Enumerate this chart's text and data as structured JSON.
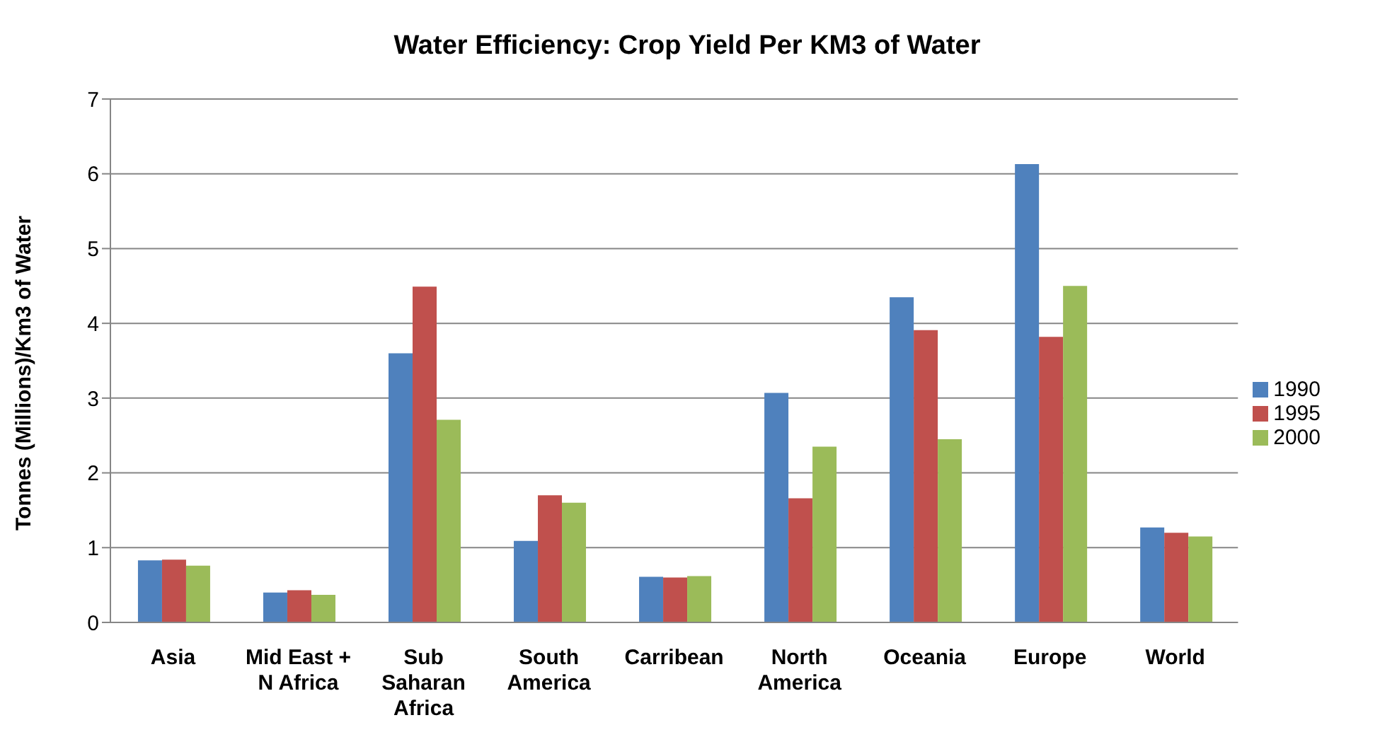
{
  "chart_data": {
    "type": "bar",
    "title": "Water Efficiency: Crop Yield Per KM3 of Water",
    "ylabel": "Tonnes (Millions)/Km3 of Water",
    "categories": [
      "Asia",
      "Mid East + N Africa",
      "Sub Saharan Africa",
      "South America",
      "Carribean",
      "North America",
      "Oceania",
      "Europe",
      "World"
    ],
    "series": [
      {
        "name": "1990",
        "color": "#4f81bd",
        "values": [
          0.83,
          0.4,
          3.6,
          1.09,
          0.61,
          3.07,
          4.35,
          6.13,
          1.27
        ]
      },
      {
        "name": "1995",
        "color": "#c0504d",
        "values": [
          0.84,
          0.43,
          4.49,
          1.7,
          0.6,
          1.66,
          3.91,
          3.82,
          1.2
        ]
      },
      {
        "name": "2000",
        "color": "#9bbb59",
        "values": [
          0.76,
          0.37,
          2.71,
          1.6,
          0.62,
          2.35,
          2.45,
          4.5,
          1.15
        ]
      }
    ],
    "ylim": [
      0,
      7
    ],
    "yticks": [
      0,
      1,
      2,
      3,
      4,
      5,
      6,
      7
    ],
    "grid": "y",
    "legend": "right"
  }
}
